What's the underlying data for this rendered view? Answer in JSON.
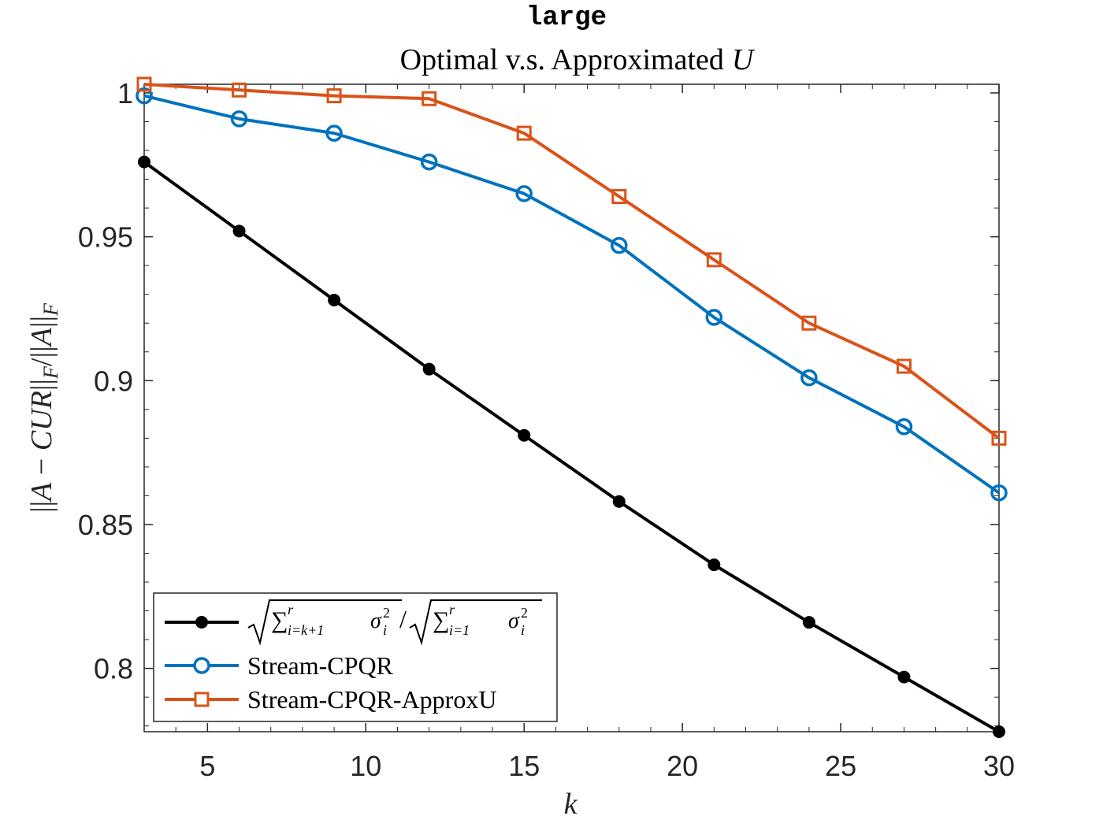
{
  "chart_data": {
    "type": "line",
    "title": "large",
    "subtitle": "Optimal v.s. Approximated",
    "subtitle_var": "U",
    "xlabel": "k",
    "ylabel": "||A − CUR||_F/||A||_F",
    "xlim": [
      3,
      30
    ],
    "ylim": [
      0.778,
      1.003
    ],
    "xticks": [
      5,
      10,
      15,
      20,
      25,
      30
    ],
    "yticks": [
      0.8,
      0.85,
      0.9,
      0.95,
      1
    ],
    "ytick_labels": [
      "0.8",
      "0.85",
      "0.9",
      "0.95",
      "1"
    ],
    "legend_position": "bottom-left",
    "x": [
      3,
      6,
      9,
      12,
      15,
      18,
      21,
      24,
      27,
      30
    ],
    "series": [
      {
        "name": "sqrt(sum_{i=k+1}^r sigma_i^2) / sqrt(sum_{i=1}^r sigma_i^2)",
        "color": "#000000",
        "marker": "filled-circle",
        "values": [
          0.976,
          0.952,
          0.928,
          0.904,
          0.881,
          0.858,
          0.836,
          0.816,
          0.797,
          0.778
        ]
      },
      {
        "name": "Stream-CPQR",
        "color": "#0072BD",
        "marker": "circle",
        "values": [
          0.999,
          0.991,
          0.986,
          0.976,
          0.965,
          0.947,
          0.922,
          0.901,
          0.884,
          0.861
        ]
      },
      {
        "name": "Stream-CPQR-ApproxU",
        "color": "#D95319",
        "marker": "square",
        "values": [
          1.003,
          1.001,
          0.999,
          0.998,
          0.986,
          0.964,
          0.942,
          0.92,
          0.905,
          0.88
        ]
      }
    ],
    "grid": false
  }
}
